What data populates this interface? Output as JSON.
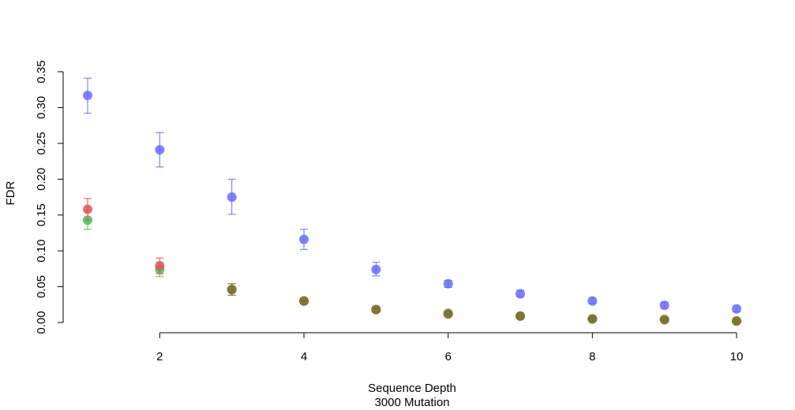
{
  "chart_data": {
    "type": "scatter",
    "title": "",
    "xlabel": "Sequence Depth",
    "xlabel_sub": "3000 Mutation",
    "ylabel": "FDR",
    "x": [
      1,
      2,
      3,
      4,
      5,
      6,
      7,
      8,
      9,
      10
    ],
    "xticks": [
      "2",
      "4",
      "6",
      "8",
      "10"
    ],
    "yticks": [
      "0.00",
      "0.05",
      "0.10",
      "0.15",
      "0.20",
      "0.25",
      "0.30",
      "0.35"
    ],
    "xlim": [
      1,
      10
    ],
    "ylim": [
      0,
      0.35
    ],
    "grid": false,
    "series": [
      {
        "color": "#6a6aff",
        "values": [
          0.317,
          0.241,
          0.175,
          0.116,
          0.074,
          0.054,
          0.04,
          0.03,
          0.024,
          0.019
        ],
        "err_low": [
          0.292,
          0.217,
          0.151,
          0.102,
          0.065,
          0.049,
          0.036,
          0.027,
          0.02,
          0.015
        ],
        "err_high": [
          0.341,
          0.265,
          0.2,
          0.13,
          0.084,
          0.059,
          0.045,
          0.034,
          0.028,
          0.022
        ]
      },
      {
        "color": "#3cc35a",
        "values": [
          0.143,
          0.074,
          0.046,
          0.03,
          0.018,
          0.013,
          0.009,
          0.005,
          0.004,
          0.002
        ],
        "err_low": [
          0.13,
          0.064,
          0.038,
          0.026,
          0.016,
          0.011,
          0.007,
          0.004,
          0.003,
          0.001
        ],
        "err_high": [
          0.156,
          0.084,
          0.054,
          0.034,
          0.021,
          0.015,
          0.011,
          0.007,
          0.005,
          0.003
        ]
      },
      {
        "color": "#e85050",
        "values": [
          0.158,
          0.079,
          0.046,
          0.03,
          0.018,
          0.012,
          0.009,
          0.005,
          0.004,
          0.002
        ],
        "err_low": [
          0.143,
          0.068,
          0.038,
          0.026,
          0.016,
          0.01,
          0.007,
          0.004,
          0.003,
          0.001
        ],
        "err_high": [
          0.173,
          0.09,
          0.054,
          0.034,
          0.021,
          0.014,
          0.011,
          0.007,
          0.005,
          0.003
        ]
      },
      {
        "color": "#727a32",
        "values": [
          null,
          null,
          0.046,
          0.03,
          0.018,
          0.012,
          0.009,
          0.005,
          0.004,
          0.002
        ],
        "err_low": [
          null,
          null,
          0.038,
          0.026,
          0.016,
          0.01,
          0.007,
          0.004,
          0.003,
          0.001
        ],
        "err_high": [
          null,
          null,
          0.054,
          0.034,
          0.021,
          0.014,
          0.011,
          0.007,
          0.005,
          0.003
        ]
      }
    ]
  }
}
